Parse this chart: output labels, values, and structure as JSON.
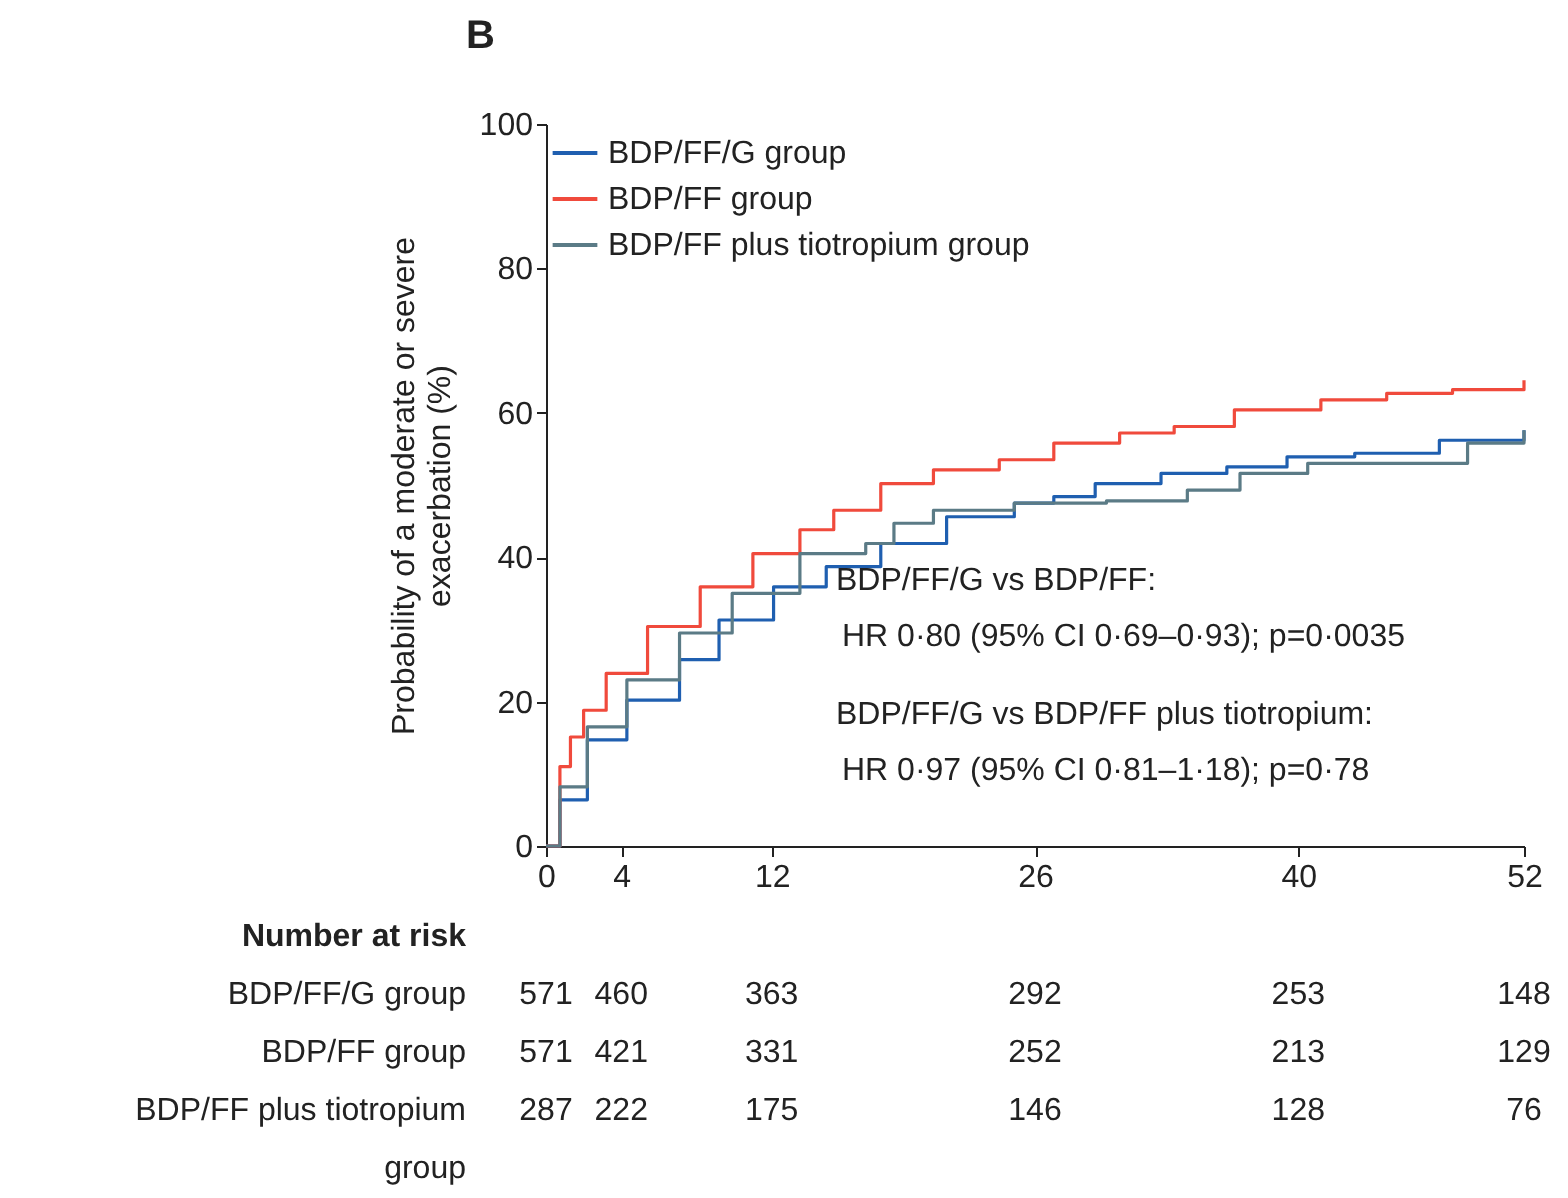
{
  "chart_data": {
    "type": "step",
    "title": "B",
    "ylabel": "Probability of a moderate or severe exacerbation (%)",
    "xlim": [
      0,
      52
    ],
    "xticks": [
      0,
      4,
      12,
      26,
      40,
      52
    ],
    "ylim": [
      0,
      100
    ],
    "yticks": [
      0,
      20,
      40,
      60,
      80,
      100
    ],
    "grid": false,
    "legend": "top left",
    "series": [
      {
        "name": "BDP/FF/G group",
        "color": "#1f5fb0",
        "x": [
          0,
          0.74,
          2.2,
          4.3,
          7.1,
          9.2,
          12.1,
          14.9,
          17.8,
          21.3,
          24.9,
          27,
          29.2,
          32.7,
          36.2,
          39.4,
          43,
          47.5,
          52
        ],
        "values": [
          0,
          6.4,
          14.7,
          20.2,
          25.8,
          31.3,
          35.9,
          38.7,
          41.9,
          45.6,
          47.5,
          48.4,
          50.2,
          51.6,
          52.5,
          53.9,
          54.4,
          56.2,
          57.6
        ]
      },
      {
        "name": "BDP/FF group",
        "color": "#f04a3c",
        "x": [
          0,
          0.74,
          1.3,
          2,
          3.2,
          5.4,
          8.2,
          11,
          13.5,
          15.3,
          17.8,
          20.6,
          24.1,
          27,
          30.5,
          33.4,
          36.6,
          41.2,
          44.7,
          48.2,
          52
        ],
        "values": [
          0,
          11,
          15.1,
          18.8,
          23.9,
          30.4,
          35.9,
          40.5,
          43.8,
          46.5,
          50.2,
          52.1,
          53.5,
          55.8,
          57.2,
          58.1,
          60.4,
          61.8,
          62.7,
          63.2,
          64.5
        ]
      },
      {
        "name": "BDP/FF plus tiotropium group",
        "color": "#5b7b86",
        "x": [
          0,
          0.74,
          2.2,
          4.3,
          7.1,
          9.9,
          13.5,
          17,
          18.5,
          20.6,
          24.9,
          29.8,
          34.1,
          36.9,
          40.5,
          44.4,
          49,
          52
        ],
        "values": [
          0,
          8.2,
          16.5,
          23,
          29.5,
          35,
          40.5,
          41.9,
          44.7,
          46.5,
          47.5,
          47.8,
          49.3,
          51.6,
          53,
          53,
          55.8,
          57.6
        ]
      }
    ],
    "annotations": [
      "BDP/FF/G vs BDP/FF:",
      "HR 0·80 (95% CI 0·69–0·93); p=0·0035",
      "BDP/FF/G vs BDP/FF plus tiotropium:",
      "HR 0·97 (95% CI 0·81–1·18); p=0·78",
      "Number at risk",
      "BDP/FF/G group",
      "571",
      "460",
      "363",
      "292",
      "253",
      "148",
      "BDP/FF group",
      "571",
      "421",
      "331",
      "252",
      "213",
      "129",
      "BDP/FF plus tiotropium group",
      "287",
      "222",
      "175",
      "146",
      "128",
      "76"
    ]
  }
}
